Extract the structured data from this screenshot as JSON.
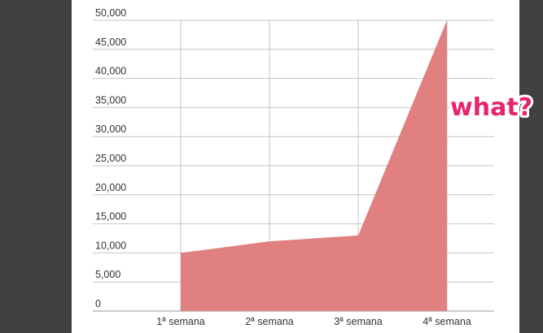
{
  "chart_data": {
    "type": "area",
    "categories": [
      "1ª semana",
      "2ª semana",
      "3ª semana",
      "4ª semana"
    ],
    "series": [
      {
        "values": [
          10000,
          12000,
          13000,
          50000
        ],
        "color": "#e08080"
      }
    ],
    "yticks": [
      "0",
      "5,000",
      "10,000",
      "15,000",
      "20,000",
      "25,000",
      "30,000",
      "35,000",
      "40,000",
      "45,000",
      "50,000"
    ],
    "ylim": [
      0,
      50000
    ],
    "grid": true,
    "title": "",
    "xlabel": "",
    "ylabel": "",
    "annotation": "what?"
  }
}
